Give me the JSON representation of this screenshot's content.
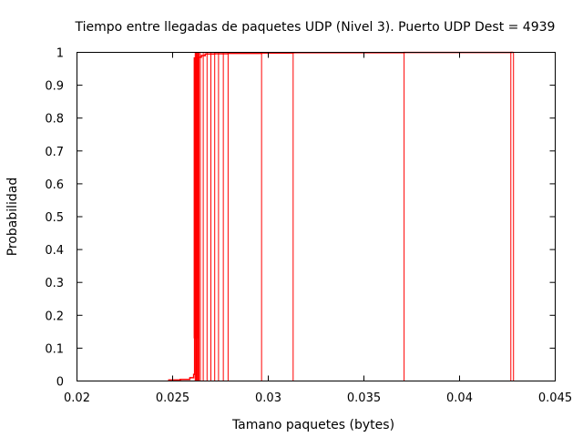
{
  "chart_data": {
    "type": "line",
    "title": "Tiempo entre llegadas de paquetes UDP (Nivel 3). Puerto UDP Dest = 4939",
    "xlabel": "Tamano paquetes (bytes)",
    "ylabel": "Probabilidad",
    "xlim": [
      0.02,
      0.045
    ],
    "ylim": [
      0,
      1
    ],
    "x_ticks": [
      0.02,
      0.025,
      0.03,
      0.035,
      0.04,
      0.045
    ],
    "x_tick_labels": [
      "0.02",
      "0.025",
      "0.03",
      "0.035",
      "0.04",
      "0.045"
    ],
    "y_ticks": [
      0,
      0.1,
      0.2,
      0.3,
      0.4,
      0.5,
      0.6,
      0.7,
      0.8,
      0.9,
      1
    ],
    "y_tick_labels": [
      "0",
      "0.1",
      "0.2",
      "0.3",
      "0.4",
      "0.5",
      "0.6",
      "0.7",
      "0.8",
      "0.9",
      "1"
    ],
    "grid": false,
    "series": [
      {
        "color": "#ff0000",
        "points": [
          [
            0.0248,
            0.0
          ],
          [
            0.0248,
            0.003
          ],
          [
            0.0254,
            0.003
          ],
          [
            0.0254,
            0.005
          ],
          [
            0.0259,
            0.005
          ],
          [
            0.0259,
            0.01
          ],
          [
            0.0261,
            0.01
          ],
          [
            0.0261,
            0.02
          ],
          [
            0.02615,
            0.02
          ],
          [
            0.02615,
            0.13
          ],
          [
            0.0262,
            0.13
          ],
          [
            0.0262,
            0.85
          ],
          [
            0.02625,
            0.85
          ],
          [
            0.02625,
            0.93
          ],
          [
            0.0263,
            0.93
          ],
          [
            0.0263,
            0.97
          ],
          [
            0.02635,
            0.97
          ],
          [
            0.02635,
            0.985
          ],
          [
            0.0265,
            0.985
          ],
          [
            0.0265,
            0.99
          ],
          [
            0.0267,
            0.99
          ],
          [
            0.0267,
            0.995
          ],
          [
            0.0272,
            0.995
          ],
          [
            0.0272,
            0.996
          ],
          [
            0.0279,
            0.996
          ],
          [
            0.0279,
            0.997
          ],
          [
            0.02965,
            0.997
          ],
          [
            0.02965,
            0.998
          ],
          [
            0.0313,
            0.998
          ],
          [
            0.0313,
            0.999
          ],
          [
            0.0371,
            0.999
          ],
          [
            0.0371,
            0.9995
          ],
          [
            0.0427,
            0.9995
          ],
          [
            0.0427,
            1.0
          ],
          [
            0.0428,
            1.0
          ]
        ],
        "spikes": [
          0.02618,
          0.02622,
          0.02626,
          0.0263,
          0.02634,
          0.02638,
          0.02645,
          0.0266,
          0.0268,
          0.027,
          0.0272,
          0.0274,
          0.02765,
          0.0279,
          0.02965,
          0.0313,
          0.0371,
          0.04268,
          0.04282
        ]
      }
    ]
  }
}
